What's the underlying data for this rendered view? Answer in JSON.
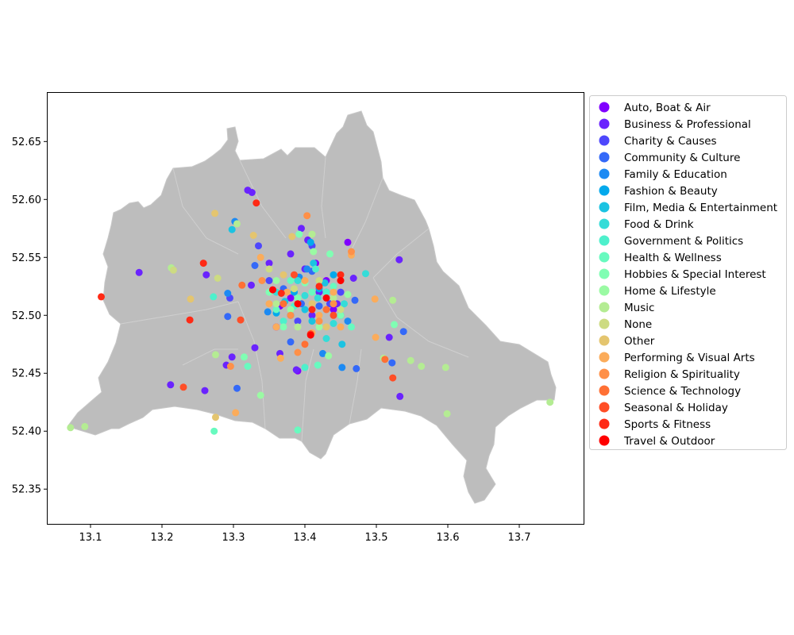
{
  "chart_data": {
    "type": "scatter",
    "title": "",
    "xlabel": "",
    "ylabel": "",
    "xlim": [
      13.04,
      13.79
    ],
    "ylim": [
      52.32,
      52.692
    ],
    "xticks": [
      "13.1",
      "13.2",
      "13.3",
      "13.4",
      "13.5",
      "13.6",
      "13.7"
    ],
    "yticks": [
      "52.35",
      "52.40",
      "52.45",
      "52.50",
      "52.55",
      "52.60",
      "52.65"
    ],
    "grid": false,
    "legend_placement": "outside-right",
    "background_map": "Berlin districts (grey)",
    "series": [
      {
        "name": "Auto, Boat & Air",
        "color": "#8000ff",
        "points": [
          [
            13.39,
            52.452
          ],
          [
            13.43,
            52.53
          ],
          [
            13.46,
            52.563
          ],
          [
            13.365,
            52.508
          ],
          [
            13.415,
            52.545
          ],
          [
            13.38,
            52.515
          ],
          [
            13.44,
            52.505
          ],
          [
            13.36,
            52.49
          ]
        ]
      },
      {
        "name": "Business & Professional",
        "color": "#6a23fe",
        "points": [
          [
            13.32,
            52.608
          ],
          [
            13.326,
            52.606
          ],
          [
            13.168,
            52.537
          ],
          [
            13.212,
            52.44
          ],
          [
            13.26,
            52.435
          ],
          [
            13.29,
            52.457
          ],
          [
            13.298,
            52.464
          ],
          [
            13.33,
            52.472
          ],
          [
            13.388,
            52.453
          ],
          [
            13.365,
            52.467
          ],
          [
            13.518,
            52.481
          ],
          [
            13.532,
            52.548
          ],
          [
            13.533,
            52.43
          ],
          [
            13.468,
            52.532
          ],
          [
            13.395,
            52.575
          ],
          [
            13.404,
            52.565
          ],
          [
            13.262,
            52.535
          ],
          [
            13.325,
            52.526
          ],
          [
            13.38,
            52.553
          ],
          [
            13.35,
            52.545
          ],
          [
            13.42,
            52.52
          ],
          [
            13.445,
            52.51
          ],
          [
            13.4,
            52.54
          ],
          [
            13.41,
            52.5
          ]
        ]
      },
      {
        "name": "Charity & Causes",
        "color": "#4e47fc",
        "points": [
          [
            13.41,
            52.56
          ],
          [
            13.335,
            52.56
          ],
          [
            13.295,
            52.515
          ],
          [
            13.35,
            52.53
          ],
          [
            13.435,
            52.51
          ],
          [
            13.39,
            52.495
          ],
          [
            13.45,
            52.52
          ]
        ]
      },
      {
        "name": "Community & Culture",
        "color": "#3469f8",
        "points": [
          [
            13.522,
            52.459
          ],
          [
            13.538,
            52.486
          ],
          [
            13.472,
            52.454
          ],
          [
            13.305,
            52.437
          ],
          [
            13.292,
            52.499
          ],
          [
            13.33,
            52.543
          ],
          [
            13.37,
            52.523
          ],
          [
            13.41,
            52.538
          ],
          [
            13.42,
            52.508
          ],
          [
            13.395,
            52.51
          ],
          [
            13.47,
            52.513
          ],
          [
            13.38,
            52.477
          ]
        ]
      },
      {
        "name": "Family & Education",
        "color": "#1c8af3",
        "points": [
          [
            13.302,
            52.581
          ],
          [
            13.292,
            52.519
          ],
          [
            13.348,
            52.503
          ],
          [
            13.392,
            52.533
          ],
          [
            13.43,
            52.52
          ],
          [
            13.425,
            52.467
          ],
          [
            13.452,
            52.455
          ],
          [
            13.403,
            52.54
          ],
          [
            13.38,
            52.5
          ],
          [
            13.46,
            52.495
          ]
        ]
      },
      {
        "name": "Fashion & Beauty",
        "color": "#03a9ec",
        "points": [
          [
            13.408,
            52.563
          ],
          [
            13.36,
            52.502
          ],
          [
            13.42,
            52.523
          ],
          [
            13.44,
            52.535
          ],
          [
            13.385,
            52.52
          ],
          [
            13.45,
            52.5
          ]
        ]
      },
      {
        "name": "Film, Media & Entertainment",
        "color": "#1bc3e2",
        "points": [
          [
            13.298,
            52.574
          ],
          [
            13.412,
            52.545
          ],
          [
            13.428,
            52.528
          ],
          [
            13.372,
            52.512
          ],
          [
            13.4,
            52.505
          ],
          [
            13.452,
            52.475
          ],
          [
            13.41,
            52.495
          ]
        ]
      },
      {
        "name": "Food & Drink",
        "color": "#34dcd8",
        "points": [
          [
            13.485,
            52.536
          ],
          [
            13.44,
            52.493
          ],
          [
            13.39,
            52.53
          ],
          [
            13.418,
            52.515
          ],
          [
            13.36,
            52.52
          ],
          [
            13.43,
            52.48
          ],
          [
            13.4,
            52.517
          ],
          [
            13.455,
            52.51
          ]
        ]
      },
      {
        "name": "Government & Politics",
        "color": "#4ef0cc",
        "points": [
          [
            13.272,
            52.516
          ],
          [
            13.4,
            52.455
          ],
          [
            13.415,
            52.54
          ],
          [
            13.385,
            52.508
          ],
          [
            13.43,
            52.52
          ],
          [
            13.37,
            52.495
          ]
        ]
      },
      {
        "name": "Health & Wellness",
        "color": "#68fabf",
        "points": [
          [
            13.273,
            52.4
          ],
          [
            13.39,
            52.401
          ],
          [
            13.32,
            52.456
          ],
          [
            13.418,
            52.457
          ],
          [
            13.36,
            52.505
          ],
          [
            13.44,
            52.525
          ],
          [
            13.41,
            52.52
          ],
          [
            13.38,
            52.53
          ],
          [
            13.465,
            52.49
          ]
        ]
      },
      {
        "name": "Hobbies & Special Interest",
        "color": "#80feb3",
        "points": [
          [
            13.315,
            52.464
          ],
          [
            13.525,
            52.492
          ],
          [
            13.392,
            52.57
          ],
          [
            13.435,
            52.553
          ],
          [
            13.35,
            52.52
          ],
          [
            13.42,
            52.5
          ],
          [
            13.4,
            52.528
          ],
          [
            13.37,
            52.49
          ],
          [
            13.45,
            52.5
          ],
          [
            13.39,
            52.515
          ]
        ]
      },
      {
        "name": "Home & Lifestyle",
        "color": "#9afaa3",
        "points": [
          [
            13.338,
            52.431
          ],
          [
            13.412,
            52.555
          ],
          [
            13.433,
            52.465
          ],
          [
            13.46,
            52.518
          ],
          [
            13.38,
            52.505
          ],
          [
            13.42,
            52.49
          ],
          [
            13.36,
            52.53
          ]
        ]
      },
      {
        "name": "Music",
        "color": "#b4ec93",
        "points": [
          [
            13.072,
            52.403
          ],
          [
            13.092,
            52.404
          ],
          [
            13.213,
            52.541
          ],
          [
            13.275,
            52.466
          ],
          [
            13.305,
            52.579
          ],
          [
            13.51,
            52.463
          ],
          [
            13.523,
            52.513
          ],
          [
            13.548,
            52.461
          ],
          [
            13.563,
            52.456
          ],
          [
            13.597,
            52.455
          ],
          [
            13.599,
            52.415
          ],
          [
            13.743,
            52.425
          ],
          [
            13.41,
            52.57
          ],
          [
            13.36,
            52.51
          ],
          [
            13.44,
            52.515
          ],
          [
            13.39,
            52.49
          ]
        ]
      },
      {
        "name": "None",
        "color": "#cddb82",
        "points": [
          [
            13.216,
            52.539
          ],
          [
            13.278,
            52.532
          ],
          [
            13.35,
            52.54
          ],
          [
            13.42,
            52.53
          ],
          [
            13.385,
            52.523
          ],
          [
            13.45,
            52.505
          ]
        ]
      },
      {
        "name": "Other",
        "color": "#e4c56f",
        "points": [
          [
            13.274,
            52.588
          ],
          [
            13.24,
            52.514
          ],
          [
            13.275,
            52.412
          ],
          [
            13.328,
            52.569
          ],
          [
            13.382,
            52.568
          ],
          [
            13.41,
            52.51
          ],
          [
            13.37,
            52.535
          ],
          [
            13.43,
            52.49
          ]
        ]
      },
      {
        "name": "Performing & Visual Arts",
        "color": "#fbac5b",
        "points": [
          [
            13.499,
            52.481
          ],
          [
            13.498,
            52.514
          ],
          [
            13.303,
            52.416
          ],
          [
            13.366,
            52.463
          ],
          [
            13.338,
            52.55
          ],
          [
            13.465,
            52.552
          ],
          [
            13.39,
            52.51
          ],
          [
            13.42,
            52.5
          ],
          [
            13.36,
            52.49
          ],
          [
            13.44,
            52.52
          ],
          [
            13.4,
            52.53
          ],
          [
            13.375,
            52.52
          ],
          [
            13.45,
            52.49
          ],
          [
            13.41,
            52.485
          ],
          [
            13.35,
            52.51
          ]
        ]
      },
      {
        "name": "Religion & Spirituality",
        "color": "#ff9048",
        "points": [
          [
            13.403,
            52.586
          ],
          [
            13.296,
            52.456
          ],
          [
            13.39,
            52.468
          ],
          [
            13.465,
            52.555
          ],
          [
            13.34,
            52.53
          ],
          [
            13.42,
            52.495
          ],
          [
            13.38,
            52.5
          ],
          [
            13.44,
            52.51
          ]
        ]
      },
      {
        "name": "Science & Technology",
        "color": "#ff7034",
        "points": [
          [
            13.512,
            52.462
          ],
          [
            13.312,
            52.526
          ],
          [
            13.4,
            52.475
          ],
          [
            13.43,
            52.505
          ],
          [
            13.37,
            52.51
          ],
          [
            13.45,
            52.53
          ]
        ]
      },
      {
        "name": "Seasonal & Holiday",
        "color": "#ff4e27",
        "points": [
          [
            13.23,
            52.438
          ],
          [
            13.523,
            52.446
          ],
          [
            13.31,
            52.496
          ],
          [
            13.408,
            52.484
          ],
          [
            13.385,
            52.535
          ],
          [
            13.44,
            52.5
          ]
        ]
      },
      {
        "name": "Sports & Fitness",
        "color": "#ff2a15",
        "points": [
          [
            13.115,
            52.516
          ],
          [
            13.258,
            52.545
          ],
          [
            13.239,
            52.496
          ],
          [
            13.332,
            52.597
          ],
          [
            13.367,
            52.519
          ],
          [
            13.41,
            52.505
          ],
          [
            13.42,
            52.525
          ],
          [
            13.45,
            52.535
          ]
        ]
      },
      {
        "name": "Travel & Outdoor",
        "color": "#ff0000",
        "points": [
          [
            13.408,
            52.483
          ],
          [
            13.355,
            52.522
          ],
          [
            13.45,
            52.53
          ],
          [
            13.39,
            52.51
          ],
          [
            13.43,
            52.515
          ]
        ]
      }
    ]
  }
}
